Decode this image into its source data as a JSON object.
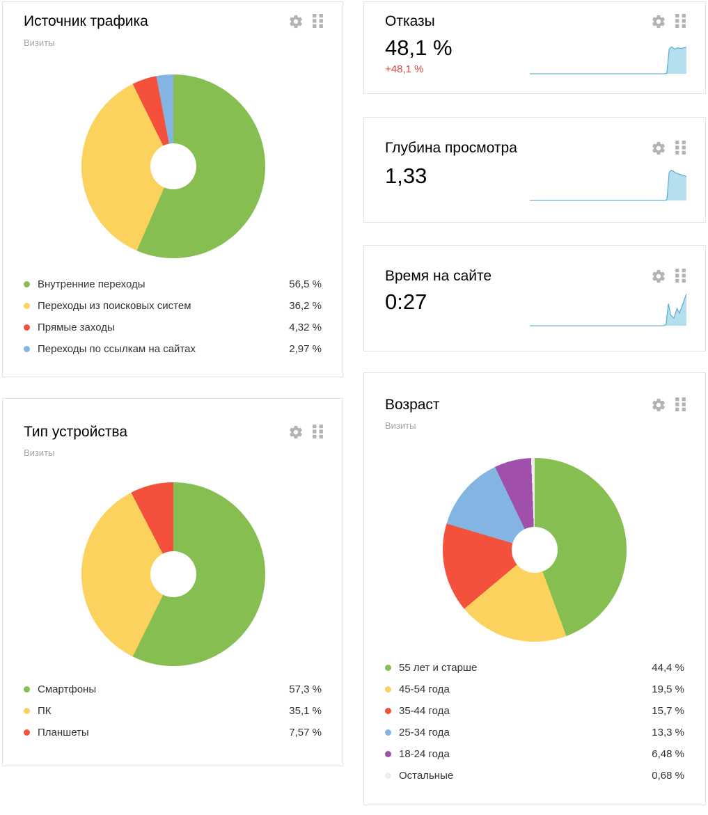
{
  "icons": {
    "settings": "gear-icon",
    "drag": "drag-handle-icon"
  },
  "ui_colors": {
    "card_border": "#e4e4e4",
    "icon_gray": "#b3b3b3",
    "subtitle_gray": "#a3a3a3",
    "legend_text": "#333333",
    "delta_red": "#d6453f"
  },
  "chart_data": [
    {
      "id": "traffic-source",
      "type": "pie",
      "style": "donut",
      "title": "Источник трафика",
      "subtitle": "Визиты",
      "labels": [
        "Внутренние переходы",
        "Переходы из поисковых систем",
        "Прямые заходы",
        "Переходы по ссылкам на сайтах"
      ],
      "values": [
        56.5,
        36.2,
        4.32,
        2.97
      ],
      "display_values": [
        "56,5 %",
        "36,2 %",
        "4,32 %",
        "2,97 %"
      ],
      "colors": [
        "#86be52",
        "#fbd25d",
        "#f4513d",
        "#84b5e2"
      ],
      "start_angle": "top",
      "direction": "clockwise",
      "hole_ratio": 0.25,
      "legend_position": "bottom"
    },
    {
      "id": "bounces",
      "type": "area",
      "title": "Отказы",
      "value": "48,1 %",
      "delta": "+48,1 %",
      "delta_color": "#d6453f",
      "line_color": "#5aadcd",
      "fill_color": "#b5deee",
      "axes": "hidden",
      "points": [
        [
          0,
          4
        ],
        [
          86,
          4
        ],
        [
          87.5,
          6
        ],
        [
          89,
          78
        ],
        [
          90.5,
          85
        ],
        [
          92.5,
          78
        ],
        [
          94.5,
          82
        ],
        [
          97,
          80
        ],
        [
          100,
          84
        ]
      ]
    },
    {
      "id": "page-depth",
      "type": "area",
      "title": "Глубина просмотра",
      "value": "1,33",
      "line_color": "#5aadcd",
      "fill_color": "#b5deee",
      "axes": "hidden",
      "points": [
        [
          0,
          4
        ],
        [
          86,
          4
        ],
        [
          87.5,
          6
        ],
        [
          89,
          88
        ],
        [
          90.5,
          95
        ],
        [
          93,
          87
        ],
        [
          96,
          82
        ],
        [
          100,
          76
        ]
      ]
    },
    {
      "id": "time-on-site",
      "type": "area",
      "title": "Время на сайте",
      "value": "0:27",
      "line_color": "#5aadcd",
      "fill_color": "#b5deee",
      "axes": "hidden",
      "points": [
        [
          0,
          4
        ],
        [
          85.5,
          4
        ],
        [
          87,
          8
        ],
        [
          88.5,
          70
        ],
        [
          90,
          36
        ],
        [
          92,
          27
        ],
        [
          94,
          56
        ],
        [
          95.5,
          42
        ],
        [
          97.5,
          66
        ],
        [
          100,
          100
        ]
      ]
    },
    {
      "id": "device-type",
      "type": "pie",
      "style": "donut",
      "title": "Тип устройства",
      "subtitle": "Визиты",
      "labels": [
        "Смартфоны",
        "ПК",
        "Планшеты"
      ],
      "values": [
        57.3,
        35.1,
        7.57
      ],
      "display_values": [
        "57,3 %",
        "35,1 %",
        "7,57 %"
      ],
      "colors": [
        "#86be52",
        "#fbd25d",
        "#f4513d"
      ],
      "start_angle": "top",
      "direction": "clockwise",
      "hole_ratio": 0.25,
      "legend_position": "bottom"
    },
    {
      "id": "age",
      "type": "pie",
      "style": "donut",
      "title": "Возраст",
      "subtitle": "Визиты",
      "labels": [
        "55 лет и старше",
        "45-54 года",
        "35-44 года",
        "25-34 года",
        "18-24 года",
        "Остальные"
      ],
      "values": [
        44.4,
        19.5,
        15.7,
        13.3,
        6.48,
        0.68
      ],
      "display_values": [
        "44,4 %",
        "19,5 %",
        "15,7 %",
        "13,3 %",
        "6,48 %",
        "0,68 %"
      ],
      "colors": [
        "#86be52",
        "#fbd25d",
        "#f4513d",
        "#84b5e2",
        "#a050aa",
        "#f0eeeb"
      ],
      "start_angle": "top",
      "direction": "clockwise",
      "hole_ratio": 0.25,
      "legend_position": "bottom"
    }
  ]
}
